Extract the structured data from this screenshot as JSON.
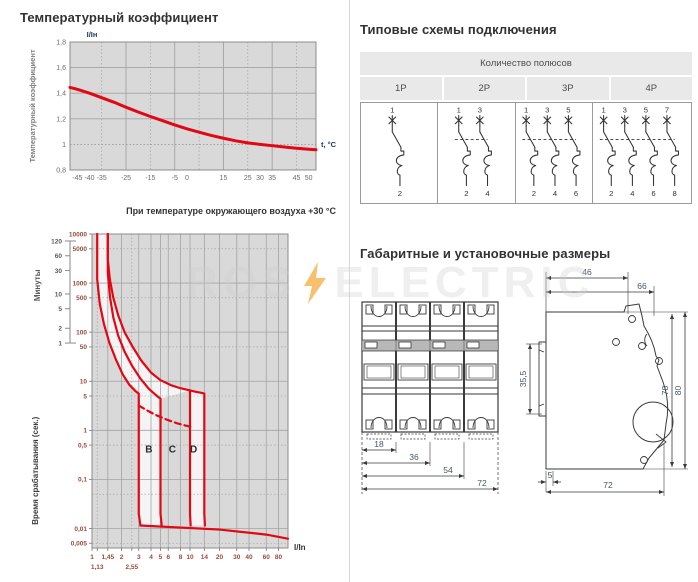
{
  "sections": {
    "temp": {
      "title": "Температурный коэффициент"
    },
    "schemes": {
      "title": "Типовые схемы подключения",
      "table_header": "Количество полюсов",
      "columns": [
        {
          "label": "1P",
          "top": [
            "1"
          ],
          "bottom": [
            "2"
          ]
        },
        {
          "label": "2P",
          "top": [
            "1",
            "3"
          ],
          "bottom": [
            "2",
            "4"
          ]
        },
        {
          "label": "3P",
          "top": [
            "1",
            "3",
            "5"
          ],
          "bottom": [
            "2",
            "4",
            "6"
          ]
        },
        {
          "label": "4P",
          "top": [
            "1",
            "3",
            "5",
            "7"
          ],
          "bottom": [
            "2",
            "4",
            "6",
            "8"
          ]
        }
      ]
    },
    "dims": {
      "title": "Габаритные и установочные размеры",
      "front": {
        "widths": [
          "18",
          "36",
          "54",
          "72"
        ]
      },
      "side": {
        "top": [
          "46",
          "66"
        ],
        "left": "35,5",
        "right": [
          "78",
          "80"
        ],
        "bottom": [
          "5",
          "72"
        ]
      }
    }
  },
  "watermark": {
    "left": "ROS",
    "right": "ELECTRIC"
  },
  "colors": {
    "curve_red": "#e30613",
    "plot_bg": "#d9d9d9",
    "zone_white": "#f4f4f4",
    "grid": "#a3a3a3",
    "plot_border": "#8c8c8c",
    "accent_blue": "#17365d",
    "tick_gray": "#6b6b6b",
    "tick_brown": "#9c4a3a",
    "minutes_gray": "#5a5a5a",
    "dim_text": "#44546a",
    "draw_line": "#3a3a3a",
    "bolt_orange": "#f59e1e",
    "band_gray": "#ababab"
  },
  "chart_data": [
    {
      "type": "line",
      "title": "Температурный коэффициент",
      "ylabel": "Температурный коэффициент",
      "y_top_label": "I/Iн",
      "x_right_label": "t, °C",
      "xlim": [
        -48,
        53
      ],
      "ylim": [
        0.8,
        1.8
      ],
      "x_ticks": [
        {
          "v": -45,
          "t": "-45"
        },
        {
          "v": -40,
          "t": "-40"
        },
        {
          "v": -35,
          "t": "-35"
        },
        {
          "v": -25,
          "t": "-25"
        },
        {
          "v": -15,
          "t": "-15"
        },
        {
          "v": -5,
          "t": "-5"
        },
        {
          "v": 0,
          "t": "0"
        },
        {
          "v": 15,
          "t": "15"
        },
        {
          "v": 25,
          "t": "25"
        },
        {
          "v": 30,
          "t": "30"
        },
        {
          "v": 35,
          "t": "35"
        },
        {
          "v": 45,
          "t": "45"
        },
        {
          "v": 50,
          "t": "50"
        }
      ],
      "y_ticks": [
        {
          "v": 1.8,
          "t": "1,8"
        },
        {
          "v": 1.6,
          "t": "1,6"
        },
        {
          "v": 1.4,
          "t": "1,4"
        },
        {
          "v": 1.2,
          "t": "1,2"
        },
        {
          "v": 1,
          "t": "1"
        },
        {
          "v": 0.8,
          "t": "0,8"
        }
      ],
      "grid_x_solid": [
        -25,
        -5,
        15,
        35
      ],
      "grid_x_dotted": [
        -35,
        -15,
        5,
        25,
        45
      ],
      "grid_y_solid": [
        1.2,
        1.4,
        1.6
      ],
      "grid_y_dotted": [
        1.0
      ],
      "points": [
        [
          -48,
          1.445
        ],
        [
          -45,
          1.43
        ],
        [
          -40,
          1.4
        ],
        [
          -35,
          1.365
        ],
        [
          -30,
          1.33
        ],
        [
          -25,
          1.29
        ],
        [
          -20,
          1.253
        ],
        [
          -15,
          1.218
        ],
        [
          -10,
          1.185
        ],
        [
          -5,
          1.152
        ],
        [
          0,
          1.122
        ],
        [
          5,
          1.095
        ],
        [
          10,
          1.07
        ],
        [
          15,
          1.048
        ],
        [
          20,
          1.028
        ],
        [
          25,
          1.012
        ],
        [
          30,
          1.0
        ],
        [
          35,
          0.99
        ],
        [
          40,
          0.98
        ],
        [
          45,
          0.97
        ],
        [
          50,
          0.962
        ],
        [
          53,
          0.958
        ]
      ]
    },
    {
      "type": "line",
      "scale": "log-log",
      "title": "При температуре окружающего воздуха +30 °С",
      "xlabel": "I/In",
      "ylabel": "Время срабатывания (сек.)",
      "minutes_label": "Минуты",
      "xlim": [
        1,
        100
      ],
      "ylim": [
        0.004,
        10000
      ],
      "x_ticks": [
        {
          "v": 1,
          "t": "1"
        },
        {
          "v": 1.45,
          "t": "1,45"
        },
        {
          "v": 2,
          "t": "2"
        },
        {
          "v": 3,
          "t": "3"
        },
        {
          "v": 4,
          "t": "4"
        },
        {
          "v": 5,
          "t": "5"
        },
        {
          "v": 6,
          "t": "6"
        },
        {
          "v": 8,
          "t": "8"
        },
        {
          "v": 10,
          "t": "10"
        },
        {
          "v": 14,
          "t": "14"
        },
        {
          "v": 20,
          "t": "20"
        },
        {
          "v": 30,
          "t": "30"
        },
        {
          "v": 40,
          "t": "40"
        },
        {
          "v": 60,
          "t": "60"
        },
        {
          "v": 80,
          "t": "80"
        }
      ],
      "x_sub_ticks": [
        {
          "v": 1.13,
          "t": "1,13"
        },
        {
          "v": 2.55,
          "t": "2,55"
        }
      ],
      "y_ticks": [
        {
          "v": 10000,
          "t": "10000"
        },
        {
          "v": 5000,
          "t": "5000"
        },
        {
          "v": 1000,
          "t": "1000"
        },
        {
          "v": 500,
          "t": "500"
        },
        {
          "v": 100,
          "t": "100"
        },
        {
          "v": 50,
          "t": "50"
        },
        {
          "v": 10,
          "t": "10"
        },
        {
          "v": 5,
          "t": "5"
        },
        {
          "v": 1,
          "t": "1"
        },
        {
          "v": 0.5,
          "t": "0,5"
        },
        {
          "v": 0.1,
          "t": "0,1"
        },
        {
          "v": 0.01,
          "t": "0,01"
        },
        {
          "v": 0.005,
          "t": "0,005"
        }
      ],
      "minutes_ticks": [
        {
          "v": 7200,
          "t": "120"
        },
        {
          "v": 3600,
          "t": "60"
        },
        {
          "v": 1800,
          "t": "30"
        },
        {
          "v": 600,
          "t": "10"
        },
        {
          "v": 300,
          "t": "5"
        },
        {
          "v": 120,
          "t": "2"
        },
        {
          "v": 60,
          "t": "1"
        }
      ],
      "grid_x_solid": [
        1,
        1.45,
        2,
        3,
        4,
        5,
        6,
        8,
        10,
        14,
        20,
        30,
        40,
        60,
        80,
        100
      ],
      "grid_x_dotted": [
        1.13,
        2.55
      ],
      "grid_y_solid": [
        10000,
        1000,
        100,
        10,
        1,
        0.1,
        0.01
      ],
      "grid_y_dotted": [
        5000,
        500,
        50,
        5,
        0.5,
        0.05,
        0.005
      ],
      "curve_labels": [
        {
          "t": "B",
          "x": 3.8,
          "y": 0.35
        },
        {
          "t": "C",
          "x": 6.6,
          "y": 0.35
        },
        {
          "t": "D",
          "x": 10.9,
          "y": 0.35
        }
      ],
      "curves": {
        "b_lower": [
          [
            1.13,
            10000
          ],
          [
            1.13,
            1200
          ],
          [
            1.2,
            380
          ],
          [
            1.32,
            150
          ],
          [
            1.5,
            62
          ],
          [
            1.75,
            28
          ],
          [
            2.05,
            14
          ],
          [
            2.4,
            8.5
          ],
          [
            2.8,
            6.2
          ],
          [
            3,
            5.6
          ],
          [
            3,
            0.02
          ],
          [
            3.12,
            0.0115
          ]
        ],
        "bc_mid": [
          [
            1.45,
            10000
          ],
          [
            1.45,
            1600
          ],
          [
            1.53,
            500
          ],
          [
            1.65,
            200
          ],
          [
            1.85,
            85
          ],
          [
            2.15,
            40
          ],
          [
            2.55,
            21
          ],
          [
            3.1,
            11.5
          ],
          [
            3.8,
            7
          ],
          [
            4.5,
            5.2
          ],
          [
            5,
            4.4
          ],
          [
            5,
            0.02
          ],
          [
            5.14,
            0.0115
          ]
        ],
        "cd_mid": [
          [
            1.45,
            10000
          ],
          [
            1.45,
            3000
          ],
          [
            1.52,
            1200
          ],
          [
            1.65,
            500
          ],
          [
            1.85,
            220
          ],
          [
            2.15,
            100
          ],
          [
            2.6,
            50
          ],
          [
            3.2,
            26
          ],
          [
            4,
            15
          ],
          [
            5,
            10.5
          ],
          [
            6.5,
            8.2
          ],
          [
            8,
            7.2
          ],
          [
            10,
            6.5
          ],
          [
            10,
            0.02
          ],
          [
            10.15,
            0.0115
          ]
        ],
        "d_upper": [
          [
            10,
            6.5
          ],
          [
            11.5,
            6.1
          ],
          [
            13,
            5.8
          ],
          [
            14,
            5.6
          ],
          [
            14,
            0.02
          ],
          [
            14.2,
            0.0115
          ]
        ],
        "inst_line": [
          [
            3.12,
            0.0115
          ],
          [
            20,
            0.0095
          ],
          [
            60,
            0.0075
          ],
          [
            100,
            0.0062
          ]
        ],
        "dashed": [
          [
            3,
            3.2
          ],
          [
            3.7,
            2.5
          ],
          [
            4.6,
            2.0
          ],
          [
            5.8,
            1.65
          ],
          [
            7.3,
            1.4
          ],
          [
            9,
            1.25
          ],
          [
            10.2,
            1.18
          ]
        ]
      }
    }
  ]
}
